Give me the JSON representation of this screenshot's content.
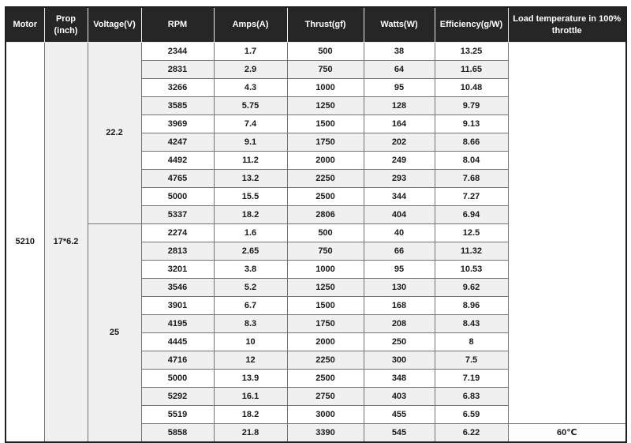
{
  "table": {
    "headers": [
      "Motor",
      "Prop (inch)",
      "Voltage(V)",
      "RPM",
      "Amps(A)",
      "Thrust(gf)",
      "Watts(W)",
      "Efficiency(g/W)",
      "Load temperature in 100% throttle"
    ],
    "motor": "5210",
    "prop": "17*6.2",
    "load_temperature": "60℃",
    "sections": [
      {
        "voltage": "22.2",
        "rows": [
          [
            "2344",
            "1.7",
            "500",
            "38",
            "13.25"
          ],
          [
            "2831",
            "2.9",
            "750",
            "64",
            "11.65"
          ],
          [
            "3266",
            "4.3",
            "1000",
            "95",
            "10.48"
          ],
          [
            "3585",
            "5.75",
            "1250",
            "128",
            "9.79"
          ],
          [
            "3969",
            "7.4",
            "1500",
            "164",
            "9.13"
          ],
          [
            "4247",
            "9.1",
            "1750",
            "202",
            "8.66"
          ],
          [
            "4492",
            "11.2",
            "2000",
            "249",
            "8.04"
          ],
          [
            "4765",
            "13.2",
            "2250",
            "293",
            "7.68"
          ],
          [
            "5000",
            "15.5",
            "2500",
            "344",
            "7.27"
          ],
          [
            "5337",
            "18.2",
            "2806",
            "404",
            "6.94"
          ]
        ]
      },
      {
        "voltage": "25",
        "rows": [
          [
            "2274",
            "1.6",
            "500",
            "40",
            "12.5"
          ],
          [
            "2813",
            "2.65",
            "750",
            "66",
            "11.32"
          ],
          [
            "3201",
            "3.8",
            "1000",
            "95",
            "10.53"
          ],
          [
            "3546",
            "5.2",
            "1250",
            "130",
            "9.62"
          ],
          [
            "3901",
            "6.7",
            "1500",
            "168",
            "8.96"
          ],
          [
            "4195",
            "8.3",
            "1750",
            "208",
            "8.43"
          ],
          [
            "4445",
            "10",
            "2000",
            "250",
            "8"
          ],
          [
            "4716",
            "12",
            "2250",
            "300",
            "7.5"
          ],
          [
            "5000",
            "13.9",
            "2500",
            "348",
            "7.19"
          ],
          [
            "5292",
            "16.1",
            "2750",
            "403",
            "6.83"
          ],
          [
            "5519",
            "18.2",
            "3000",
            "455",
            "6.59"
          ],
          [
            "5858",
            "21.8",
            "3390",
            "545",
            "6.22"
          ]
        ]
      }
    ],
    "colors": {
      "header_bg": "#262626",
      "header_text": "#ffffff",
      "row_alt": "#f0f0f0",
      "border": "#737373",
      "outer_border": "#1f1f1f"
    }
  }
}
